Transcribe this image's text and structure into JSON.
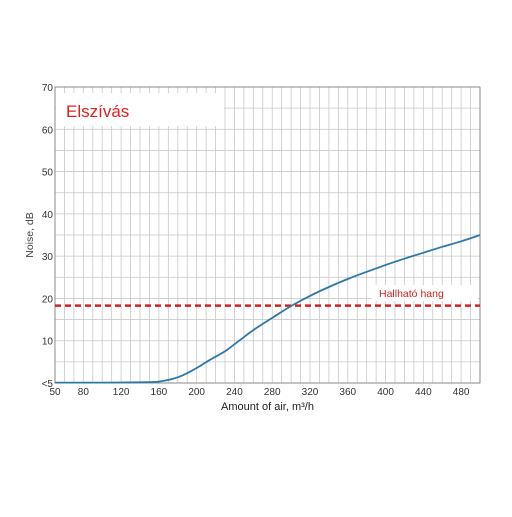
{
  "chart_data": {
    "type": "line",
    "title": "Elszívás",
    "xlabel": "Amount of air, m³/h",
    "ylabel": "Noise, dB",
    "xlim": [
      50,
      500
    ],
    "ylim": [
      0,
      70
    ],
    "x_ticks": [
      {
        "value": 50,
        "label": "50"
      },
      {
        "value": 80,
        "label": "80"
      },
      {
        "value": 120,
        "label": "120"
      },
      {
        "value": 160,
        "label": "160"
      },
      {
        "value": 200,
        "label": "200"
      },
      {
        "value": 240,
        "label": "240"
      },
      {
        "value": 280,
        "label": "280"
      },
      {
        "value": 320,
        "label": "320"
      },
      {
        "value": 360,
        "label": "360"
      },
      {
        "value": 400,
        "label": "400"
      },
      {
        "value": 440,
        "label": "440"
      },
      {
        "value": 480,
        "label": "480"
      }
    ],
    "y_ticks": [
      {
        "value": 0,
        "label": "<5"
      },
      {
        "value": 10,
        "label": "10"
      },
      {
        "value": 20,
        "label": "20"
      },
      {
        "value": 30,
        "label": "30"
      },
      {
        "value": 40,
        "label": "40"
      },
      {
        "value": 50,
        "label": "50"
      },
      {
        "value": 60,
        "label": "60"
      },
      {
        "value": 70,
        "label": "70"
      }
    ],
    "grid": true,
    "series": [
      {
        "x": [
          50,
          100,
          150,
          165,
          175,
          185,
          195,
          205,
          215,
          230,
          245,
          260,
          280,
          300,
          320,
          340,
          360,
          380,
          400,
          420,
          440,
          460,
          480,
          500
        ],
        "y": [
          0.1,
          0.1,
          0.2,
          0.5,
          1.0,
          1.8,
          2.9,
          4.2,
          5.6,
          7.5,
          10.0,
          12.5,
          15.4,
          18.2,
          20.6,
          22.7,
          24.6,
          26.3,
          27.9,
          29.4,
          30.8,
          32.2,
          33.5,
          35.0
        ],
        "color": "#2e78a8"
      }
    ],
    "reference_line": {
      "y": 18.3,
      "label": "Hallható hang",
      "color": "#d42020",
      "style": "dashed"
    }
  }
}
